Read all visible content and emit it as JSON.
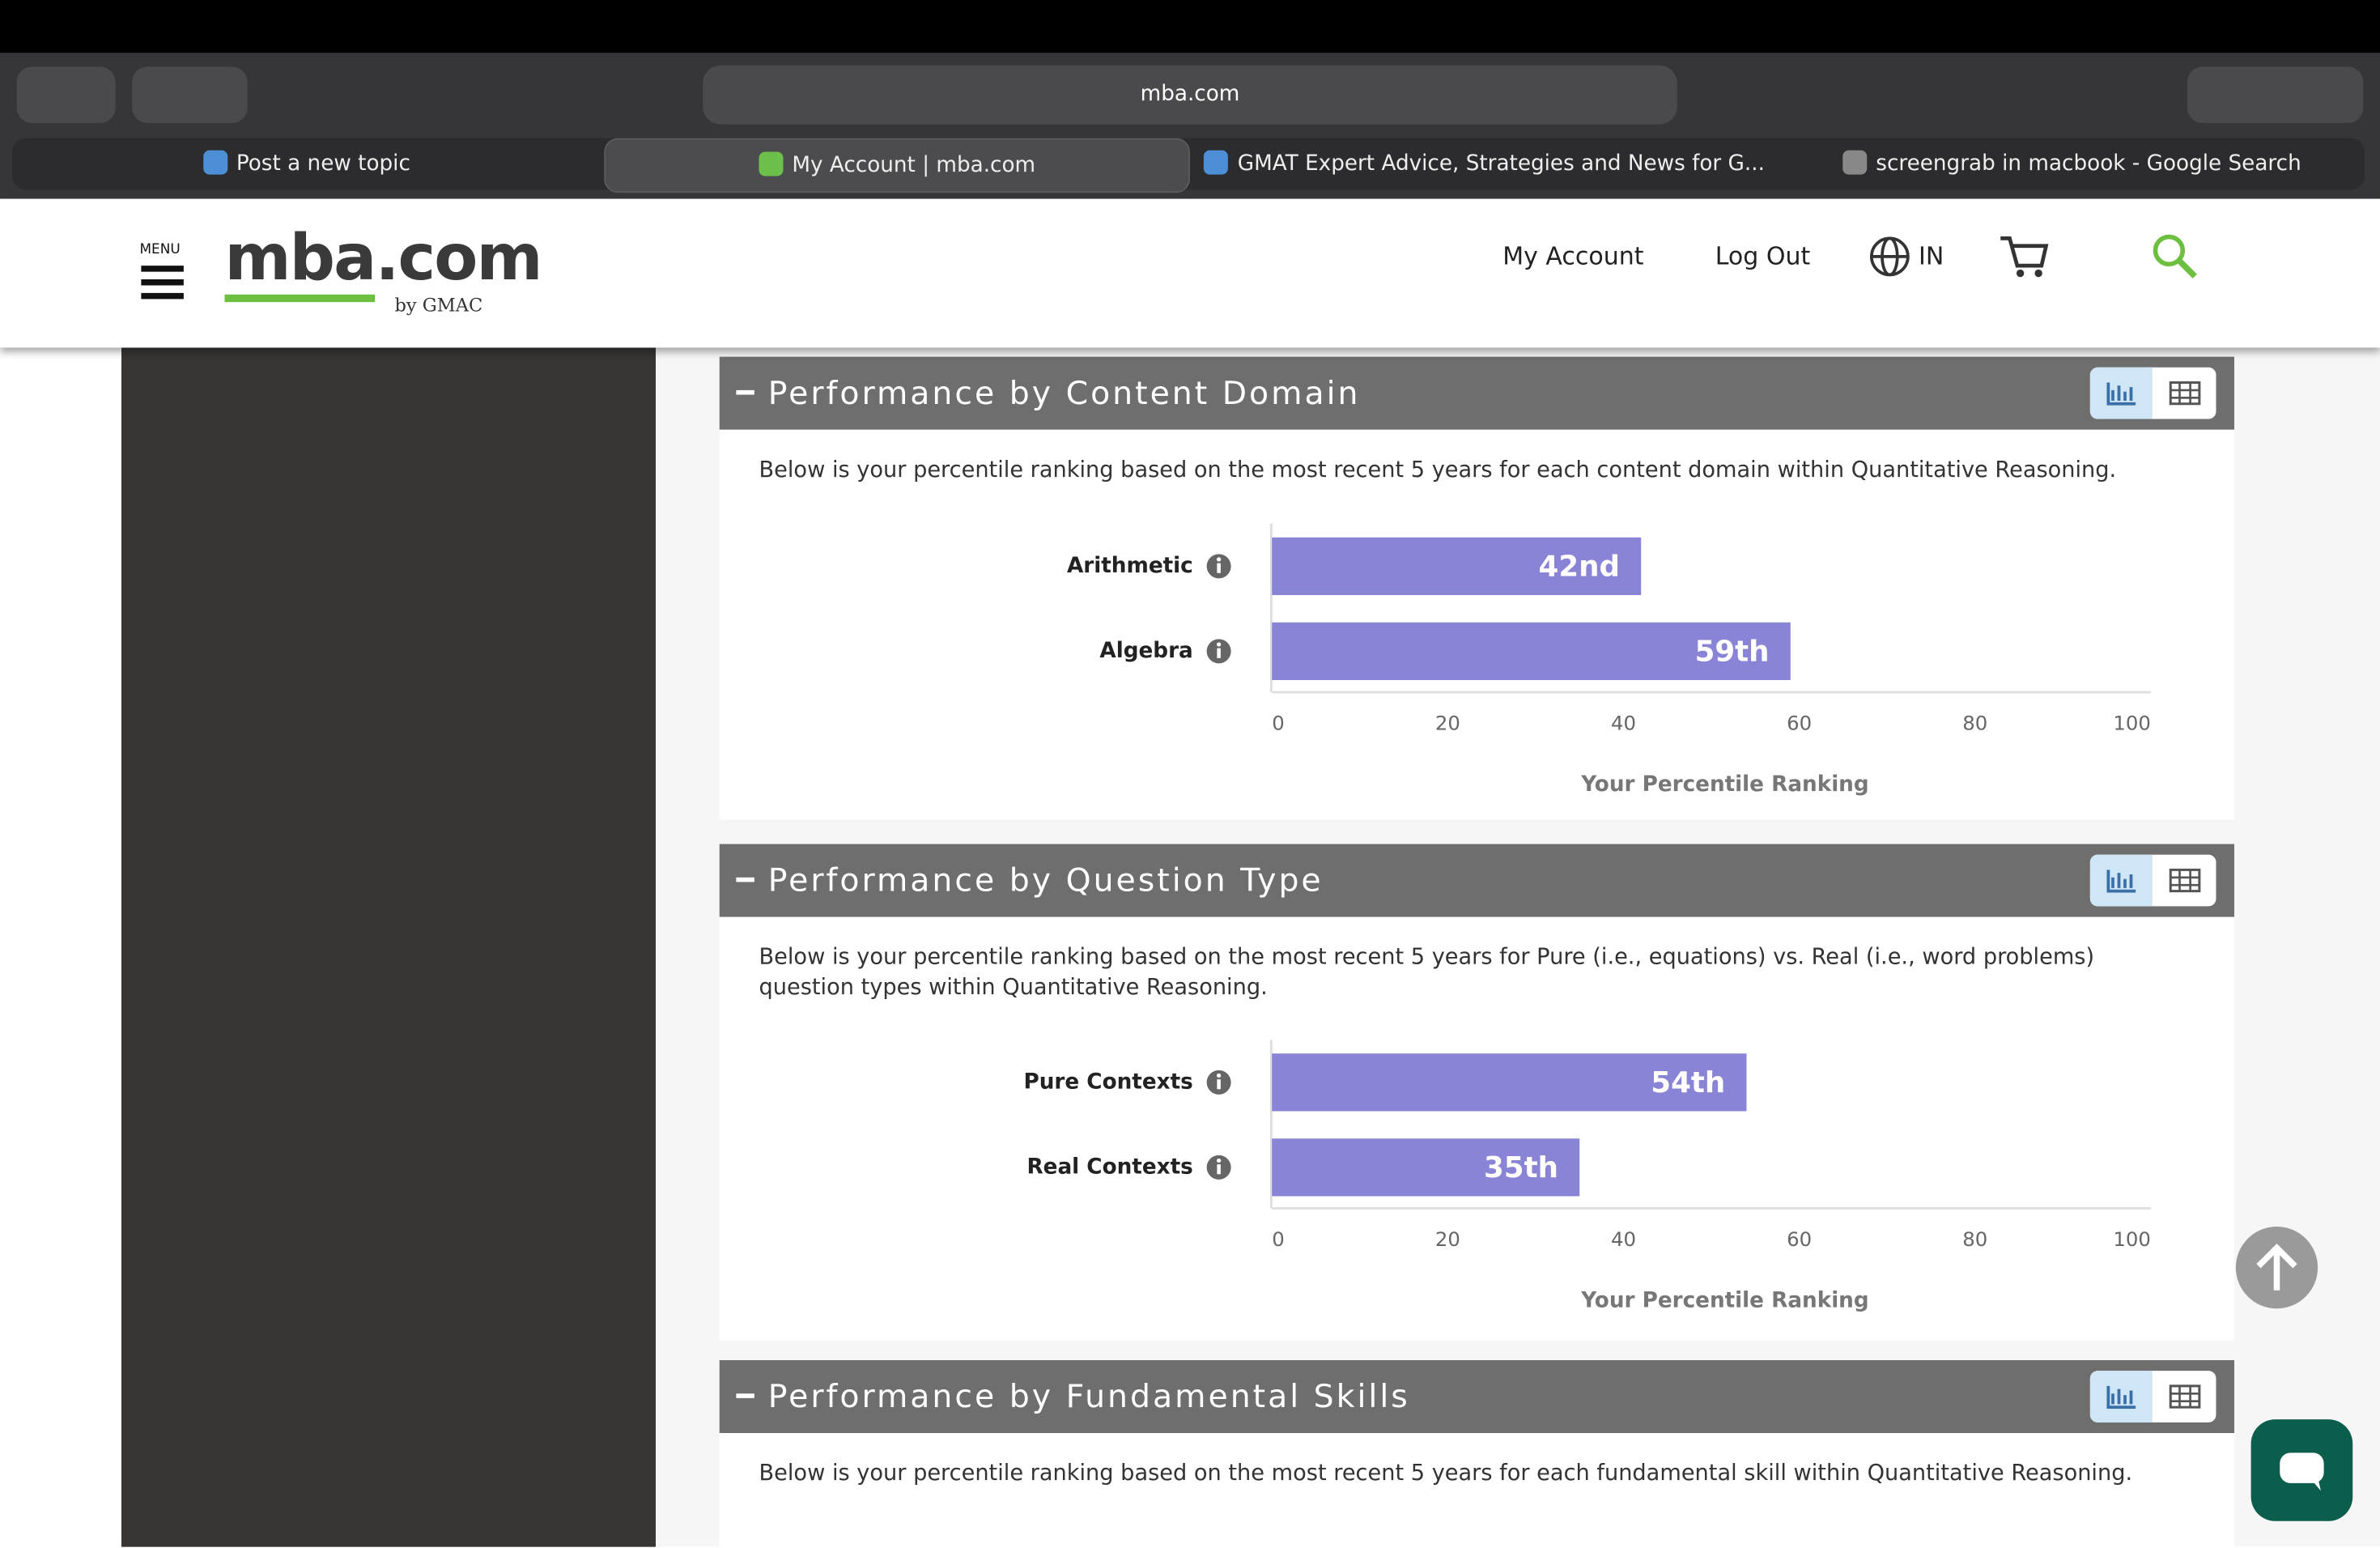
{
  "browser": {
    "url": "mba.com",
    "tabs": [
      "Post a new topic",
      "My Account | mba.com",
      "GMAT Expert Advice, Strategies and News for G...",
      "screengrab in macbook - Google Search"
    ]
  },
  "header": {
    "menu": "MENU",
    "logo_main": "mba",
    "logo_tld": ".com",
    "logo_sub": "by GMAC",
    "nav": [
      "My Account",
      "Log Out"
    ],
    "region": "IN"
  },
  "sections": [
    {
      "title": "Performance by Content Domain",
      "description": "Below is your percentile ranking based on the most recent 5 years for each content domain within Quantitative Reasoning.",
      "chart_data": {
        "type": "bar",
        "orientation": "horizontal",
        "categories": [
          "Arithmetic",
          "Algebra"
        ],
        "values": [
          42,
          59
        ],
        "value_labels": [
          "42nd",
          "59th"
        ],
        "color": "#8a84d6",
        "xlim": [
          0,
          100
        ],
        "xticks": [
          0,
          20,
          40,
          60,
          80,
          100
        ],
        "xlabel": "Your Percentile Ranking"
      }
    },
    {
      "title": "Performance by Question Type",
      "description": "Below is your percentile ranking based on the most recent 5 years for Pure (i.e., equations) vs. Real (i.e., word problems) question types within Quantitative Reasoning.",
      "chart_data": {
        "type": "bar",
        "orientation": "horizontal",
        "categories": [
          "Pure Contexts",
          "Real Contexts"
        ],
        "values": [
          54,
          35
        ],
        "value_labels": [
          "54th",
          "35th"
        ],
        "color": "#8a84d6",
        "xlim": [
          0,
          100
        ],
        "xticks": [
          0,
          20,
          40,
          60,
          80,
          100
        ],
        "xlabel": "Your Percentile Ranking"
      }
    },
    {
      "title": "Performance by Fundamental Skills",
      "description": "Below is your percentile ranking based on the most recent 5 years for each fundamental skill within Quantitative Reasoning."
    }
  ]
}
